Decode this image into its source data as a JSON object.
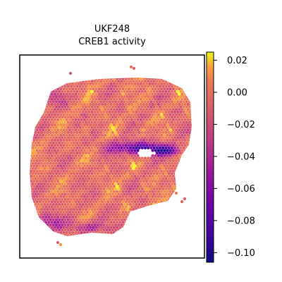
{
  "chart_data": {
    "type": "heatmap",
    "title": "UKF248",
    "subtitle": "CREB1 activity",
    "xlabel": "",
    "ylabel": "",
    "colormap": "plasma",
    "colorbar": {
      "min": -0.106,
      "max": 0.025,
      "ticks": [
        0.02,
        0.0,
        -0.02,
        -0.04,
        -0.06,
        -0.08,
        -0.1
      ],
      "tick_labels": [
        "0.02",
        "0.00",
        "−0.02",
        "−0.04",
        "−0.06",
        "−0.08",
        "−0.10"
      ]
    },
    "grid": false,
    "legend": "colorbar-right"
  }
}
